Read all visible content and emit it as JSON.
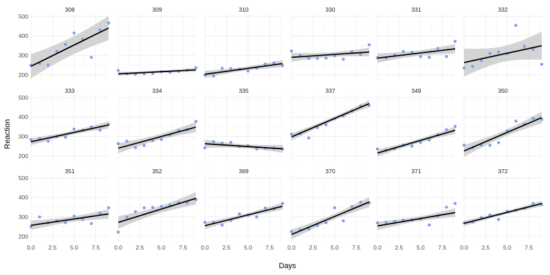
{
  "chart_data": {
    "type": "scatter",
    "facet_layout": "3 rows x 6 columns",
    "xlabel": "Days",
    "ylabel": "Reaction",
    "xlim": [
      0,
      9
    ],
    "ylim": [
      175,
      510
    ],
    "x_ticks": [
      0,
      2.5,
      5,
      7.5
    ],
    "x_tick_labels": [
      "0.0",
      "2.5",
      "5.0",
      "7.5"
    ],
    "y_ticks": [
      200,
      300,
      400,
      500
    ],
    "y_tick_labels": [
      "200",
      "300",
      "400",
      "500"
    ],
    "grid": true,
    "overlay": "linear fit line with gray confidence band",
    "colors": {
      "points": "#7b9fea",
      "line": "#000000",
      "band": "#cccccc",
      "grid": "#ebebeb"
    },
    "panels": [
      {
        "subject": "308",
        "x": [
          0,
          1,
          2,
          3,
          4,
          5,
          6,
          7,
          8,
          9
        ],
        "y": [
          250,
          259,
          251,
          321,
          357,
          415,
          382,
          290,
          431,
          466
        ],
        "fit_intercept": 244,
        "fit_slope": 21.8,
        "band_halfwidth": [
          62,
          46,
          62
        ]
      },
      {
        "subject": "309",
        "x": [
          0,
          1,
          2,
          3,
          4,
          5,
          6,
          7,
          8,
          9
        ],
        "y": [
          223,
          205,
          203,
          205,
          208,
          216,
          214,
          218,
          224,
          237
        ],
        "fit_intercept": 205,
        "fit_slope": 2.3,
        "band_halfwidth": [
          10,
          6,
          10
        ]
      },
      {
        "subject": "310",
        "x": [
          0,
          1,
          2,
          3,
          4,
          5,
          6,
          7,
          8,
          9
        ],
        "y": [
          199,
          194,
          234,
          232,
          229,
          220,
          235,
          255,
          261,
          248
        ],
        "fit_intercept": 203,
        "fit_slope": 6.1,
        "band_halfwidth": [
          18,
          10,
          18
        ]
      },
      {
        "subject": "330",
        "x": [
          0,
          1,
          2,
          3,
          4,
          5,
          6,
          7,
          8,
          9
        ],
        "y": [
          322,
          300,
          284,
          285,
          286,
          298,
          280,
          318,
          305,
          354
        ],
        "fit_intercept": 290,
        "fit_slope": 3.0,
        "band_halfwidth": [
          22,
          12,
          22
        ]
      },
      {
        "subject": "331",
        "x": [
          0,
          1,
          2,
          3,
          4,
          5,
          6,
          7,
          8,
          9
        ],
        "y": [
          288,
          285,
          302,
          320,
          316,
          294,
          290,
          335,
          294,
          372
        ],
        "fit_intercept": 286,
        "fit_slope": 5.3,
        "band_halfwidth": [
          24,
          14,
          24
        ]
      },
      {
        "subject": "332",
        "x": [
          0,
          1,
          2,
          3,
          4,
          5,
          6,
          7,
          8,
          9
        ],
        "y": [
          235,
          243,
          273,
          310,
          317,
          309,
          454,
          346,
          330,
          254
        ],
        "fit_intercept": 263,
        "fit_slope": 9.6,
        "band_halfwidth": [
          72,
          40,
          72
        ]
      },
      {
        "subject": "333",
        "x": [
          0,
          1,
          2,
          3,
          4,
          5,
          6,
          7,
          8,
          9
        ],
        "y": [
          284,
          289,
          276,
          299,
          297,
          338,
          332,
          349,
          333,
          362
        ],
        "fit_intercept": 273,
        "fit_slope": 9.6,
        "band_halfwidth": [
          18,
          10,
          18
        ]
      },
      {
        "subject": "334",
        "x": [
          0,
          1,
          2,
          3,
          4,
          5,
          6,
          7,
          8,
          9
        ],
        "y": [
          264,
          276,
          243,
          254,
          279,
          285,
          307,
          331,
          335,
          377
        ],
        "fit_intercept": 240,
        "fit_slope": 12.0,
        "band_halfwidth": [
          26,
          14,
          26
        ]
      },
      {
        "subject": "335",
        "x": [
          0,
          1,
          2,
          3,
          4,
          5,
          6,
          7,
          8,
          9
        ],
        "y": [
          242,
          274,
          266,
          270,
          249,
          253,
          236,
          240,
          241,
          236
        ],
        "fit_intercept": 263,
        "fit_slope": -2.9,
        "band_halfwidth": [
          20,
          10,
          20
        ]
      },
      {
        "subject": "337",
        "x": [
          0,
          1,
          2,
          3,
          4,
          5,
          6,
          7,
          8,
          9
        ],
        "y": [
          312,
          314,
          292,
          346,
          360,
          391,
          405,
          431,
          456,
          459
        ],
        "fit_intercept": 298,
        "fit_slope": 19.0,
        "band_halfwidth": [
          18,
          10,
          18
        ]
      },
      {
        "subject": "349",
        "x": [
          0,
          1,
          2,
          3,
          4,
          5,
          6,
          7,
          8,
          9
        ],
        "y": [
          236,
          230,
          238,
          255,
          251,
          270,
          282,
          309,
          335,
          352
        ],
        "fit_intercept": 215,
        "fit_slope": 13.0,
        "band_halfwidth": [
          18,
          10,
          18
        ]
      },
      {
        "subject": "350",
        "x": [
          0,
          1,
          2,
          3,
          4,
          5,
          6,
          7,
          8,
          9
        ],
        "y": [
          256,
          243,
          256,
          255,
          268,
          329,
          379,
          363,
          393,
          388
        ],
        "fit_intercept": 226,
        "fit_slope": 19.0,
        "band_halfwidth": [
          30,
          16,
          30
        ]
      },
      {
        "subject": "351",
        "x": [
          0,
          1,
          2,
          3,
          4,
          5,
          6,
          7,
          8,
          9
        ],
        "y": [
          250,
          300,
          270,
          280,
          271,
          304,
          287,
          266,
          320,
          347
        ],
        "fit_intercept": 257,
        "fit_slope": 6.5,
        "band_halfwidth": [
          24,
          14,
          24
        ]
      },
      {
        "subject": "352",
        "x": [
          0,
          1,
          2,
          3,
          4,
          5,
          6,
          7,
          8,
          9
        ],
        "y": [
          222,
          298,
          327,
          347,
          349,
          354,
          361,
          373,
          373,
          389
        ],
        "fit_intercept": 272,
        "fit_slope": 13.7,
        "band_halfwidth": [
          32,
          18,
          32
        ]
      },
      {
        "subject": "369",
        "x": [
          0,
          1,
          2,
          3,
          4,
          5,
          6,
          7,
          8,
          9
        ],
        "y": [
          272,
          273,
          258,
          282,
          316,
          309,
          300,
          346,
          342,
          369
        ],
        "fit_intercept": 255,
        "fit_slope": 11.1,
        "band_halfwidth": [
          18,
          10,
          18
        ]
      },
      {
        "subject": "370",
        "x": [
          0,
          1,
          2,
          3,
          4,
          5,
          6,
          7,
          8,
          9
        ],
        "y": [
          225,
          234,
          238,
          256,
          271,
          347,
          280,
          353,
          376,
          372
        ],
        "fit_intercept": 210,
        "fit_slope": 18.5,
        "band_halfwidth": [
          26,
          14,
          26
        ]
      },
      {
        "subject": "371",
        "x": [
          0,
          1,
          2,
          3,
          4,
          5,
          6,
          7,
          8,
          9
        ],
        "y": [
          270,
          272,
          277,
          284,
          285,
          290,
          259,
          305,
          350,
          369
        ],
        "fit_intercept": 254,
        "fit_slope": 7.6,
        "band_halfwidth": [
          22,
          12,
          22
        ]
      },
      {
        "subject": "372",
        "x": [
          0,
          1,
          2,
          3,
          4,
          5,
          6,
          7,
          8,
          9
        ],
        "y": [
          269,
          273,
          297,
          310,
          287,
          329,
          334,
          343,
          369,
          364
        ],
        "fit_intercept": 267,
        "fit_slope": 11.3,
        "band_halfwidth": [
          14,
          8,
          14
        ]
      }
    ]
  }
}
